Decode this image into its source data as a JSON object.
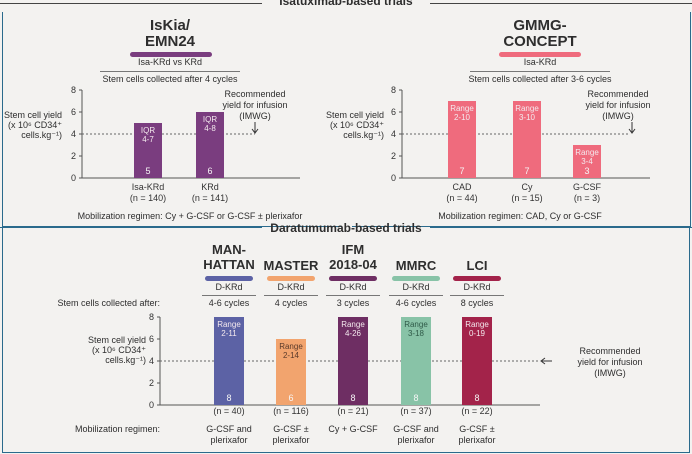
{
  "colors": {
    "frame": "#2a6a8c",
    "purple": "#7a3d7f",
    "pink": "#ef6b7d",
    "blue": "#5c62a5",
    "orange": "#f2a46e",
    "plum": "#6e2e63",
    "teal": "#88c3a7",
    "crimson": "#a3234a"
  },
  "header_top": "Isatuximab-based trials",
  "header_dara": "Daratumumab-based trials",
  "isa": {
    "iskia": {
      "name_l1": "IsKia/",
      "name_l2": "EMN24",
      "regimen": "Isa-KRd vs KRd",
      "collected": "Stem cells collected after 4 cycles",
      "mobilization": "Mobilization regimen: Cy + G-CSF or G-CSF ± plerixafor",
      "annotation_l1": "Recommended",
      "annotation_l2": "yield for infusion",
      "annotation_l3": "(IMWG)"
    },
    "concept": {
      "name_l1": "GMMG-",
      "name_l2": "CONCEPT",
      "regimen": "Isa-KRd",
      "collected": "Stem cells collected after 3-6 cycles",
      "mobilization": "Mobilization regimen: CAD, Cy or G-CSF",
      "annotation_l1": "Recommended",
      "annotation_l2": "yield for infusion",
      "annotation_l3": "(IMWG)"
    }
  },
  "ylabel": {
    "l1": "Stem cell yield",
    "l2": "(x 10⁶ CD34⁺",
    "l3": "cells.kg⁻¹)"
  },
  "dara": {
    "collected_label": "Stem cells collected after:",
    "mobilization_label": "Mobilization regimen:",
    "annotation_l1": "Recommended",
    "annotation_l2": "yield for infusion",
    "annotation_l3": "(IMWG)",
    "trials": [
      {
        "name_l1": "MAN-",
        "name_l2": "HATTAN",
        "regimen": "D-KRd",
        "cycles": "4-6 cycles",
        "mob_l1": "G-CSF and",
        "mob_l2": "plerixafor"
      },
      {
        "name_l1": "MASTER",
        "name_l2": "",
        "regimen": "D-KRd",
        "cycles": "4 cycles",
        "mob_l1": "G-CSF ±",
        "mob_l2": "plerixafor"
      },
      {
        "name_l1": "IFM",
        "name_l2": "2018-04",
        "regimen": "D-KRd",
        "cycles": "3 cycles",
        "mob_l1": "Cy + G-CSF",
        "mob_l2": ""
      },
      {
        "name_l1": "MMRC",
        "name_l2": "",
        "regimen": "D-KRd",
        "cycles": "4-6 cycles",
        "mob_l1": "G-CSF and",
        "mob_l2": "plerixafor"
      },
      {
        "name_l1": "LCI",
        "name_l2": "",
        "regimen": "D-KRd",
        "cycles": "8 cycles",
        "mob_l1": "G-CSF ±",
        "mob_l2": "plerixafor"
      }
    ]
  },
  "chart_data": [
    {
      "type": "bar",
      "title": "IsKia/EMN24",
      "ylabel": "Stem cell yield (x 10⁶ CD34⁺ cells.kg⁻¹)",
      "ylim": [
        0,
        8
      ],
      "yticks": [
        0,
        2,
        4,
        6,
        8
      ],
      "reference_line": 4,
      "categories": [
        "Isa-KRd",
        "KRd"
      ],
      "n_labels": [
        "(n = 140)",
        "(n = 141)"
      ],
      "values": [
        5,
        6
      ],
      "spread_label": [
        "IQR",
        "IQR"
      ],
      "spread": [
        "4-7",
        "4-8"
      ]
    },
    {
      "type": "bar",
      "title": "GMMG-CONCEPT",
      "ylabel": "Stem cell yield (x 10⁶ CD34⁺ cells.kg⁻¹)",
      "ylim": [
        0,
        8
      ],
      "yticks": [
        0,
        2,
        4,
        6,
        8
      ],
      "reference_line": 4,
      "categories": [
        "CAD",
        "Cy",
        "G-CSF"
      ],
      "n_labels": [
        "(n = 44)",
        "(n = 15)",
        "(n = 3)"
      ],
      "values": [
        7,
        7,
        3
      ],
      "spread_label": [
        "Range",
        "Range",
        "Range"
      ],
      "spread": [
        "2-10",
        "3-10",
        "3-4"
      ]
    },
    {
      "type": "bar",
      "title": "Daratumumab-based trials",
      "ylabel": "Stem cell yield (x 10⁶ CD34⁺ cells.kg⁻¹)",
      "ylim": [
        0,
        8
      ],
      "yticks": [
        0,
        2,
        4,
        6,
        8
      ],
      "reference_line": 4,
      "categories": [
        "MAN-HATTAN",
        "MASTER",
        "IFM 2018-04",
        "MMRC",
        "LCI"
      ],
      "n_labels": [
        "(n = 40)",
        "(n = 116)",
        "(n = 21)",
        "(n = 37)",
        "(n = 22)"
      ],
      "values": [
        8,
        6,
        8,
        8,
        8
      ],
      "spread_label": [
        "Range",
        "Range",
        "Range",
        "Range",
        "Range"
      ],
      "spread": [
        "2-11",
        "2-14",
        "4-26",
        "3-18",
        "0-19"
      ]
    }
  ]
}
